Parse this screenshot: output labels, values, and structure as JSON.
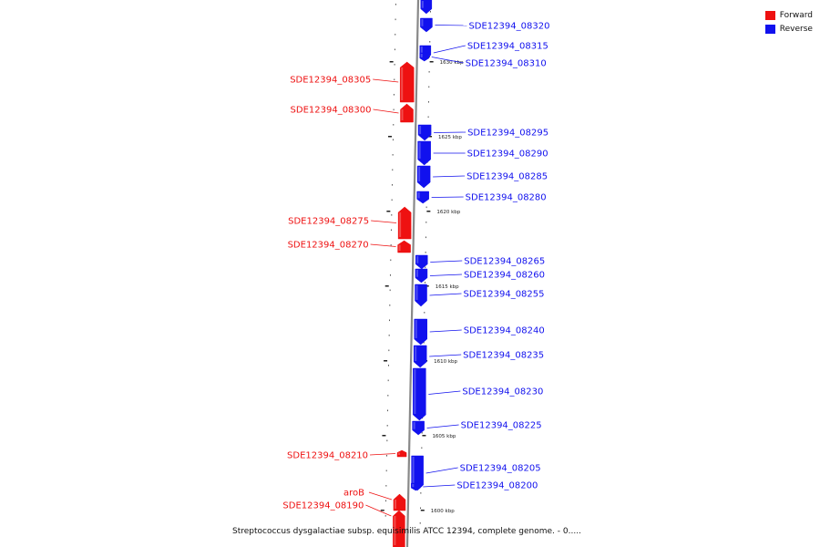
{
  "legend": {
    "forward_label": "Forward",
    "reverse_label": "Reverse",
    "forward_color": "#ee1111",
    "reverse_color": "#1111ee"
  },
  "caption": "Streptococcus dysgalactiae subsp. equisimilis ATCC 12394, complete genome. - 0.....",
  "colors": {
    "forward": "#ee1111",
    "reverse": "#1111ee",
    "backbone": "#888888"
  },
  "tick_labels": [
    "1630 kbp",
    "1625 kbp",
    "1620 kbp",
    "1615 kbp",
    "1610 kbp",
    "1605 kbp",
    "1600 kbp"
  ],
  "genes": [
    {
      "name": "SDE12394_08320",
      "strand": "reverse"
    },
    {
      "name": "SDE12394_08315",
      "strand": "reverse"
    },
    {
      "name": "SDE12394_08310",
      "strand": "reverse"
    },
    {
      "name": "SDE12394_08305",
      "strand": "forward"
    },
    {
      "name": "SDE12394_08300",
      "strand": "forward"
    },
    {
      "name": "SDE12394_08295",
      "strand": "reverse"
    },
    {
      "name": "SDE12394_08290",
      "strand": "reverse"
    },
    {
      "name": "SDE12394_08285",
      "strand": "reverse"
    },
    {
      "name": "SDE12394_08280",
      "strand": "reverse"
    },
    {
      "name": "SDE12394_08275",
      "strand": "forward"
    },
    {
      "name": "SDE12394_08270",
      "strand": "forward"
    },
    {
      "name": "SDE12394_08265",
      "strand": "reverse"
    },
    {
      "name": "SDE12394_08260",
      "strand": "reverse"
    },
    {
      "name": "SDE12394_08255",
      "strand": "reverse"
    },
    {
      "name": "SDE12394_08240",
      "strand": "reverse"
    },
    {
      "name": "SDE12394_08235",
      "strand": "reverse"
    },
    {
      "name": "SDE12394_08230",
      "strand": "reverse"
    },
    {
      "name": "SDE12394_08225",
      "strand": "reverse"
    },
    {
      "name": "SDE12394_08210",
      "strand": "forward"
    },
    {
      "name": "SDE12394_08205",
      "strand": "reverse"
    },
    {
      "name": "SDE12394_08200",
      "strand": "reverse"
    },
    {
      "name": "aroB",
      "strand": "forward"
    },
    {
      "name": "SDE12394_08190",
      "strand": "forward"
    }
  ]
}
